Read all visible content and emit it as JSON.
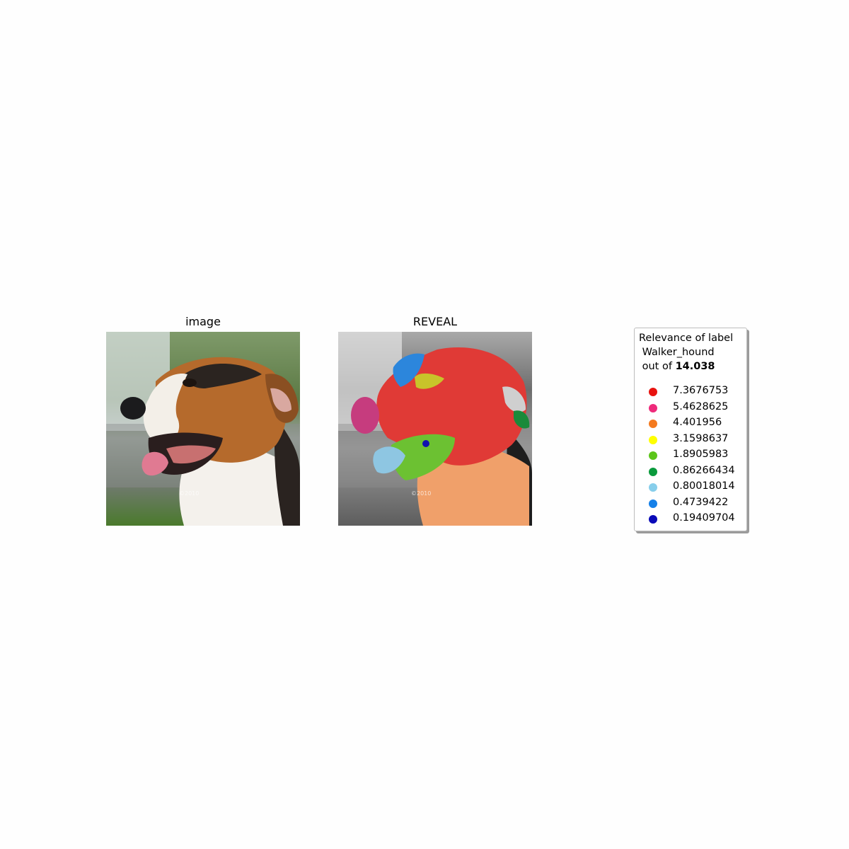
{
  "panels": {
    "image_title": "image",
    "reveal_title": "REVEAL",
    "watermark": "©2010"
  },
  "legend": {
    "title_line1": "Relevance of label",
    "title_line2": "Walker_hound",
    "title_line3_prefix": "out of ",
    "total": "14.038",
    "items": [
      {
        "color": "#e8130f",
        "value": "7.3676753"
      },
      {
        "color": "#ee2a7b",
        "value": "5.4628625"
      },
      {
        "color": "#f47a1f",
        "value": "4.401956"
      },
      {
        "color": "#ffff00",
        "value": "3.1598637"
      },
      {
        "color": "#5cc51a",
        "value": "1.8905983"
      },
      {
        "color": "#0a9a3c",
        "value": "0.86266434"
      },
      {
        "color": "#87ceeb",
        "value": "0.80018014"
      },
      {
        "color": "#1580e8",
        "value": "0.4739422"
      },
      {
        "color": "#0a0ab8",
        "value": "0.19409704"
      }
    ]
  }
}
